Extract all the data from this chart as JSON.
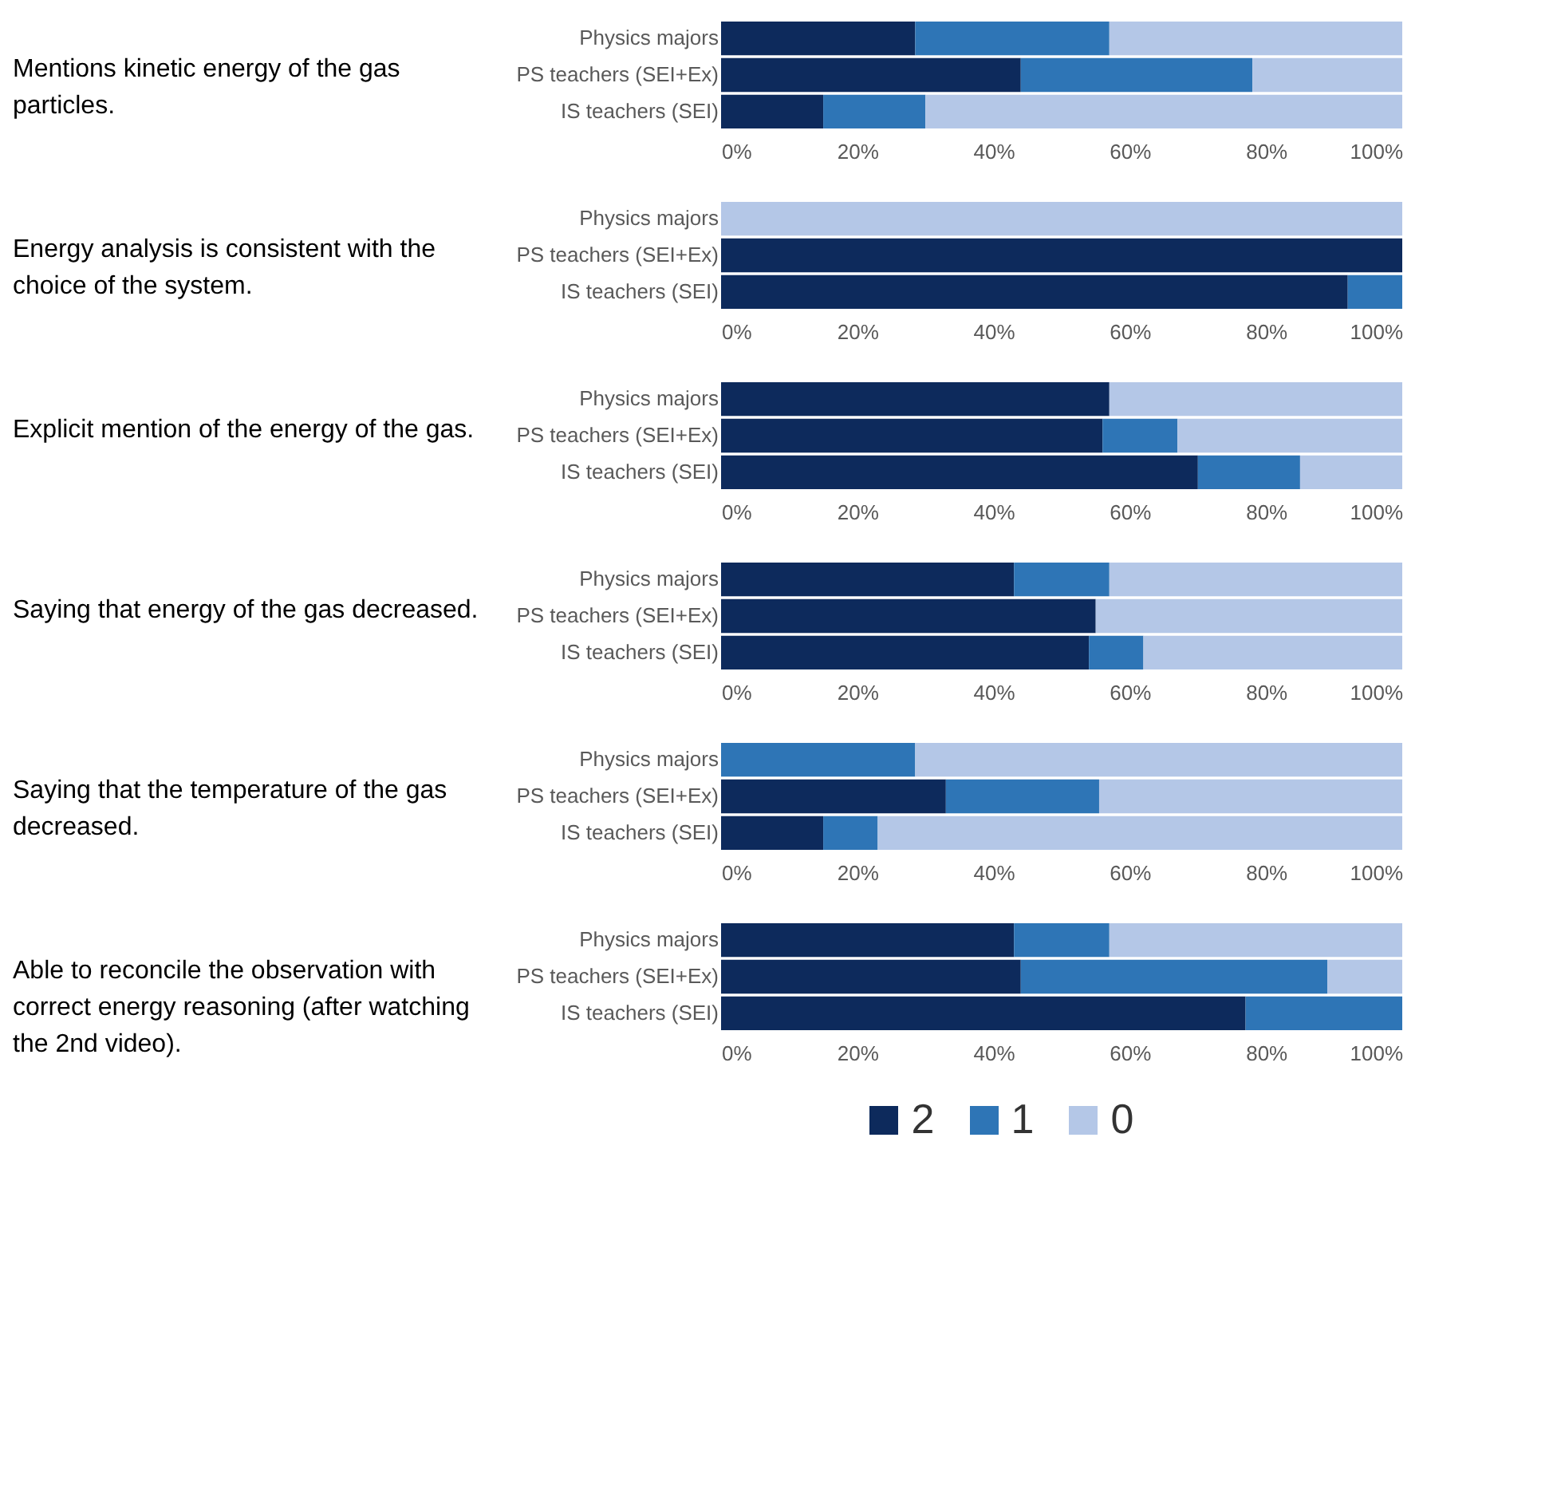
{
  "chart_data": [
    {
      "type": "bar",
      "orientation": "horizontal",
      "stacked": true,
      "title": "Mentions kinetic energy of the gas particles.",
      "categories": [
        "Physics majors",
        "PS teachers (SEI+Ex)",
        "IS teachers (SEI)"
      ],
      "series": [
        {
          "color": "#0d2a5c",
          "values": [
            28.5,
            44,
            15
          ]
        },
        {
          "color": "#2e75b6",
          "values": [
            28.5,
            34,
            15
          ]
        },
        {
          "color": "#b4c7e7",
          "values": [
            43,
            22,
            70
          ]
        }
      ],
      "xlim": [
        0,
        100
      ],
      "xticks": [
        {
          "value": 0,
          "label": "0%"
        },
        {
          "value": 20,
          "label": "20%"
        },
        {
          "value": 40,
          "label": "40%"
        },
        {
          "value": 60,
          "label": "60%"
        },
        {
          "value": 80,
          "label": "80%"
        },
        {
          "value": 100,
          "label": "100%"
        }
      ]
    },
    {
      "type": "bar",
      "orientation": "horizontal",
      "stacked": true,
      "title": "Energy analysis is consistent with the choice of the system.",
      "categories": [
        "Physics majors",
        "PS teachers (SEI+Ex)",
        "IS teachers (SEI)"
      ],
      "series": [
        {
          "color": "#0d2a5c",
          "values": [
            0,
            100,
            92
          ]
        },
        {
          "color": "#2e75b6",
          "values": [
            0,
            0,
            8
          ]
        },
        {
          "color": "#b4c7e7",
          "values": [
            100,
            0,
            0
          ]
        }
      ],
      "xlim": [
        0,
        100
      ],
      "xticks": [
        {
          "value": 0,
          "label": "0%"
        },
        {
          "value": 20,
          "label": "20%"
        },
        {
          "value": 40,
          "label": "40%"
        },
        {
          "value": 60,
          "label": "60%"
        },
        {
          "value": 80,
          "label": "80%"
        },
        {
          "value": 100,
          "label": "100%"
        }
      ]
    },
    {
      "type": "bar",
      "orientation": "horizontal",
      "stacked": true,
      "title": "Explicit mention of the energy of the gas.",
      "categories": [
        "Physics majors",
        "PS teachers (SEI+Ex)",
        "IS teachers (SEI)"
      ],
      "series": [
        {
          "color": "#0d2a5c",
          "values": [
            57,
            56,
            70
          ]
        },
        {
          "color": "#2e75b6",
          "values": [
            0,
            11,
            15
          ]
        },
        {
          "color": "#b4c7e7",
          "values": [
            43,
            33,
            15
          ]
        }
      ],
      "xlim": [
        0,
        100
      ],
      "xticks": [
        {
          "value": 0,
          "label": "0%"
        },
        {
          "value": 20,
          "label": "20%"
        },
        {
          "value": 40,
          "label": "40%"
        },
        {
          "value": 60,
          "label": "60%"
        },
        {
          "value": 80,
          "label": "80%"
        },
        {
          "value": 100,
          "label": "100%"
        }
      ]
    },
    {
      "type": "bar",
      "orientation": "horizontal",
      "stacked": true,
      "title": "Saying that energy of the gas decreased.",
      "categories": [
        "Physics majors",
        "PS teachers (SEI+Ex)",
        "IS teachers (SEI)"
      ],
      "series": [
        {
          "color": "#0d2a5c",
          "values": [
            43,
            55,
            54
          ]
        },
        {
          "color": "#2e75b6",
          "values": [
            14,
            0,
            8
          ]
        },
        {
          "color": "#b4c7e7",
          "values": [
            43,
            45,
            38
          ]
        }
      ],
      "xlim": [
        0,
        100
      ],
      "xticks": [
        {
          "value": 0,
          "label": "0%"
        },
        {
          "value": 20,
          "label": "20%"
        },
        {
          "value": 40,
          "label": "40%"
        },
        {
          "value": 60,
          "label": "60%"
        },
        {
          "value": 80,
          "label": "80%"
        },
        {
          "value": 100,
          "label": "100%"
        }
      ]
    },
    {
      "type": "bar",
      "orientation": "horizontal",
      "stacked": true,
      "title": "Saying that the temperature of the gas decreased.",
      "categories": [
        "Physics majors",
        "PS teachers (SEI+Ex)",
        "IS teachers (SEI)"
      ],
      "series": [
        {
          "color": "#0d2a5c",
          "values": [
            0,
            33,
            15
          ]
        },
        {
          "color": "#2e75b6",
          "values": [
            28.5,
            22.5,
            8
          ]
        },
        {
          "color": "#b4c7e7",
          "values": [
            71.5,
            44.5,
            77
          ]
        }
      ],
      "xlim": [
        0,
        100
      ],
      "xticks": [
        {
          "value": 0,
          "label": "0%"
        },
        {
          "value": 20,
          "label": "20%"
        },
        {
          "value": 40,
          "label": "40%"
        },
        {
          "value": 60,
          "label": "60%"
        },
        {
          "value": 80,
          "label": "80%"
        },
        {
          "value": 100,
          "label": "100%"
        }
      ]
    },
    {
      "type": "bar",
      "orientation": "horizontal",
      "stacked": true,
      "title": "Able to reconcile the observation with correct energy reasoning (after watching the 2nd video).",
      "categories": [
        "Physics majors",
        "PS teachers (SEI+Ex)",
        "IS teachers (SEI)"
      ],
      "series": [
        {
          "name": "2",
          "color": "#0d2a5c",
          "values": [
            43,
            44,
            77
          ]
        },
        {
          "name": "1",
          "color": "#2e75b6",
          "values": [
            14,
            45,
            23
          ]
        },
        {
          "name": "0",
          "color": "#b4c7e7",
          "values": [
            43,
            11,
            0
          ]
        }
      ],
      "xlim": [
        0,
        100
      ],
      "xticks": [
        {
          "value": 0,
          "label": "0%"
        },
        {
          "value": 20,
          "label": "20%"
        },
        {
          "value": 40,
          "label": "40%"
        },
        {
          "value": 60,
          "label": "60%"
        },
        {
          "value": 80,
          "label": "80%"
        },
        {
          "value": 100,
          "label": "100%"
        }
      ],
      "legend": "bottom"
    }
  ]
}
